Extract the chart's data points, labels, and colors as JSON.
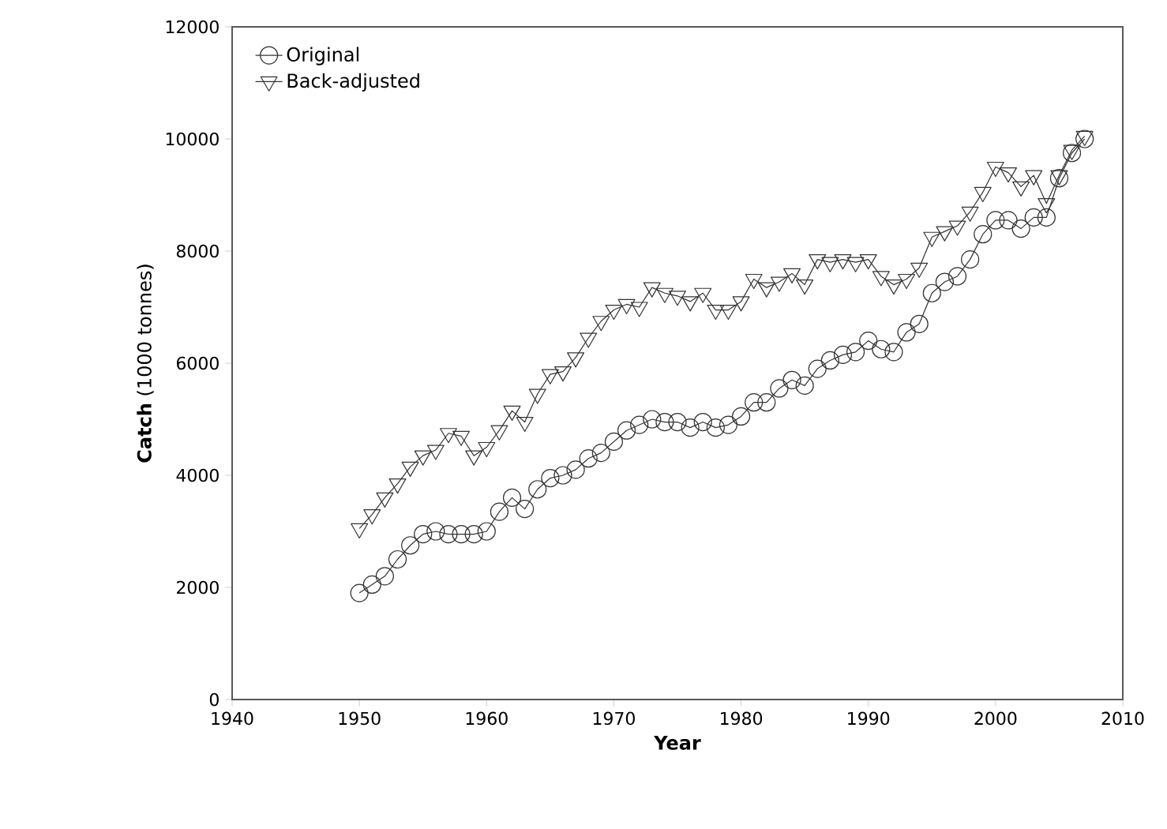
{
  "chart_data": {
    "type": "line",
    "xlabel": "Year",
    "ylabel": "**Catch** (1000 tonnes)",
    "xlim": [
      1940,
      2010
    ],
    "xticks": [
      1940,
      1950,
      1960,
      1970,
      1980,
      1990,
      2000,
      2010
    ],
    "ylim": [
      0,
      12000
    ],
    "yticks": [
      0,
      2000,
      4000,
      6000,
      8000,
      10000,
      12000
    ],
    "grid": false,
    "legend": "top left",
    "x": [
      1950,
      1951,
      1952,
      1953,
      1954,
      1955,
      1956,
      1957,
      1958,
      1959,
      1960,
      1961,
      1962,
      1963,
      1964,
      1965,
      1966,
      1967,
      1968,
      1969,
      1970,
      1971,
      1972,
      1973,
      1974,
      1975,
      1976,
      1977,
      1978,
      1979,
      1980,
      1981,
      1982,
      1983,
      1984,
      1985,
      1986,
      1987,
      1988,
      1989,
      1990,
      1991,
      1992,
      1993,
      1994,
      1995,
      1996,
      1997,
      1998,
      1999,
      2000,
      2001,
      2002,
      2003,
      2004,
      2005,
      2006,
      2007
    ],
    "series": [
      {
        "name": "Original",
        "color": "#333333",
        "marker": "circle",
        "values": [
          1900,
          2050,
          2200,
          2500,
          2750,
          2950,
          3000,
          2950,
          2950,
          2950,
          3000,
          3350,
          3600,
          3400,
          3750,
          3950,
          4000,
          4100,
          4300,
          4400,
          4600,
          4800,
          4900,
          5000,
          4950,
          4950,
          4850,
          4950,
          4850,
          4900,
          5050,
          5300,
          5300,
          5550,
          5700,
          5600,
          5900,
          6050,
          6150,
          6200,
          6400,
          6250,
          6200,
          6550,
          6700,
          7250,
          7450,
          7550,
          7850,
          8300,
          8550,
          8550,
          8400,
          8600,
          8600,
          9300,
          9750,
          10000
        ]
      },
      {
        "name": "Back-adjusted",
        "color": "#333333",
        "marker": "triangle",
        "values": [
          3050,
          3300,
          3600,
          3850,
          4150,
          4350,
          4450,
          4750,
          4700,
          4350,
          4500,
          4800,
          5150,
          4950,
          5450,
          5800,
          5850,
          6100,
          6450,
          6750,
          6950,
          7050,
          7000,
          7350,
          7250,
          7200,
          7100,
          7250,
          6950,
          6950,
          7100,
          7500,
          7350,
          7450,
          7600,
          7400,
          7850,
          7800,
          7850,
          7800,
          7850,
          7550,
          7400,
          7500,
          7700,
          8250,
          8350,
          8450,
          8700,
          9050,
          9500,
          9400,
          9150,
          9350,
          8850,
          9350,
          9800,
          10050
        ]
      }
    ]
  }
}
